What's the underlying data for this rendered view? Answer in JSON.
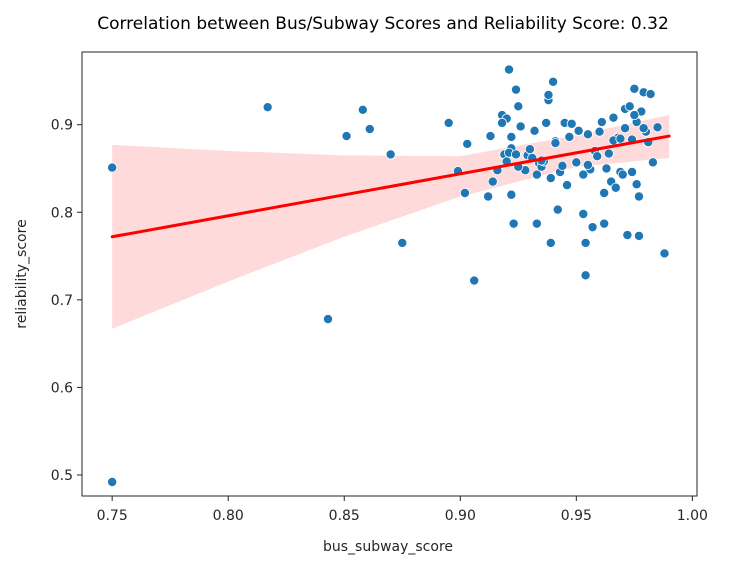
{
  "chart_data": {
    "type": "scatter",
    "title": "Correlation between Bus/Subway Scores and Reliability Score: 0.32",
    "xlabel": "bus_subway_score",
    "ylabel": "reliability_score",
    "xlim": [
      0.737,
      1.002
    ],
    "ylim": [
      0.476,
      0.983
    ],
    "xticks": [
      "0.75",
      "0.80",
      "0.85",
      "0.90",
      "0.95",
      "1.00"
    ],
    "yticks": [
      "0.5",
      "0.6",
      "0.7",
      "0.8",
      "0.9"
    ],
    "grid": false,
    "colors": {
      "points": "#1f77b4",
      "fit_line": "#ff0000",
      "confidence_band": "#ffd6d6"
    },
    "regression": {
      "x": [
        0.75,
        0.99
      ],
      "y": [
        0.772,
        0.887
      ]
    },
    "confidence_band": {
      "x": [
        0.75,
        0.8,
        0.85,
        0.9,
        0.95,
        0.99
      ],
      "lower": [
        0.667,
        0.721,
        0.772,
        0.818,
        0.852,
        0.862
      ],
      "upper": [
        0.877,
        0.87,
        0.865,
        0.864,
        0.888,
        0.911
      ]
    },
    "points": {
      "x": [
        0.75,
        0.75,
        0.817,
        0.843,
        0.851,
        0.858,
        0.861,
        0.87,
        0.875,
        0.895,
        0.899,
        0.902,
        0.903,
        0.906,
        0.912,
        0.913,
        0.914,
        0.916,
        0.918,
        0.919,
        0.92,
        0.921,
        0.922,
        0.922,
        0.923,
        0.924,
        0.925,
        0.926,
        0.928,
        0.929,
        0.93,
        0.932,
        0.933,
        0.934,
        0.935,
        0.936,
        0.937,
        0.938,
        0.939,
        0.94,
        0.941,
        0.942,
        0.943,
        0.945,
        0.946,
        0.947,
        0.948,
        0.95,
        0.951,
        0.953,
        0.954,
        0.955,
        0.956,
        0.957,
        0.958,
        0.96,
        0.961,
        0.962,
        0.963,
        0.964,
        0.965,
        0.966,
        0.967,
        0.968,
        0.969,
        0.97,
        0.971,
        0.972,
        0.973,
        0.974,
        0.975,
        0.976,
        0.977,
        0.978,
        0.979,
        0.98,
        0.981,
        0.982,
        0.983,
        0.985,
        0.988,
        0.92,
        0.921,
        0.924,
        0.925,
        0.931,
        0.935,
        0.938,
        0.941,
        0.944,
        0.954,
        0.959,
        0.962,
        0.966,
        0.971,
        0.974,
        0.976,
        0.979,
        0.922,
        0.939,
        0.953,
        0.955,
        0.969,
        0.975,
        0.977,
        0.933,
        0.918
      ],
      "y": [
        0.851,
        0.492,
        0.92,
        0.678,
        0.887,
        0.917,
        0.895,
        0.866,
        0.765,
        0.902,
        0.847,
        0.822,
        0.878,
        0.722,
        0.818,
        0.887,
        0.835,
        0.848,
        0.911,
        0.866,
        0.858,
        0.963,
        0.82,
        0.873,
        0.787,
        0.94,
        0.921,
        0.898,
        0.848,
        0.865,
        0.872,
        0.893,
        0.787,
        0.856,
        0.852,
        0.858,
        0.902,
        0.928,
        0.765,
        0.949,
        0.881,
        0.803,
        0.846,
        0.902,
        0.831,
        0.886,
        0.901,
        0.857,
        0.893,
        0.798,
        0.765,
        0.889,
        0.849,
        0.783,
        0.87,
        0.892,
        0.903,
        0.787,
        0.85,
        0.867,
        0.835,
        0.908,
        0.828,
        0.885,
        0.846,
        0.843,
        0.918,
        0.774,
        0.921,
        0.846,
        0.941,
        0.832,
        0.818,
        0.915,
        0.937,
        0.892,
        0.88,
        0.935,
        0.857,
        0.897,
        0.753,
        0.907,
        0.868,
        0.866,
        0.852,
        0.862,
        0.859,
        0.934,
        0.879,
        0.853,
        0.728,
        0.864,
        0.822,
        0.882,
        0.896,
        0.883,
        0.903,
        0.896,
        0.886,
        0.839,
        0.843,
        0.854,
        0.884,
        0.911,
        0.773,
        0.843,
        0.902
      ]
    }
  }
}
